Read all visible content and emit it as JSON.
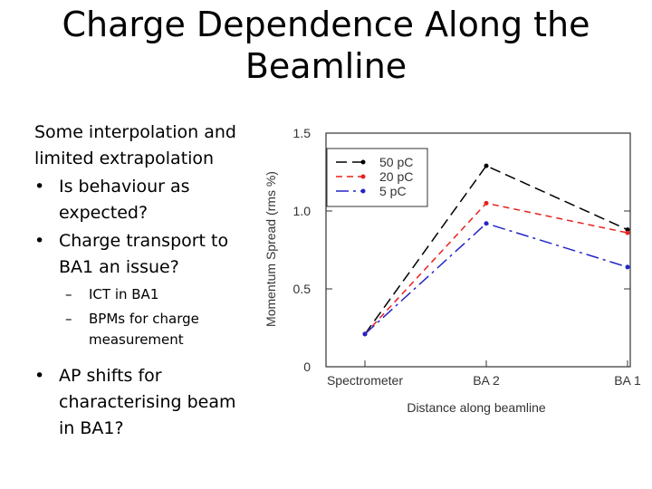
{
  "slide": {
    "title_line1": "Charge Dependence Along the",
    "title_line2": "Beamline",
    "intro_line1": "Some interpolation and",
    "intro_line2": "limited extrapolation",
    "bullets": [
      {
        "text_line1": "Is behaviour as",
        "text_line2": "expected?"
      },
      {
        "text_line1": "Charge transport to",
        "text_line2": "BA1 an issue?"
      },
      {
        "text_line1": "AP shifts for",
        "text_line2": "characterising beam",
        "text_line3": "in BA1?"
      }
    ],
    "subbullets": [
      {
        "text_line1": "ICT in BA1"
      },
      {
        "text_line1": "BPMs for charge",
        "text_line2": "measurement"
      }
    ],
    "bullet_char": "•",
    "sub_char": "–"
  },
  "chart_data": {
    "type": "line",
    "title": "",
    "xlabel": "Distance along beamline",
    "ylabel": "Momentum Spread (rms %)",
    "categories": [
      "Spectrometer",
      "BA 2",
      "BA 1"
    ],
    "ylim": [
      0,
      1.5
    ],
    "yticks": [
      0,
      0.5,
      1.0,
      1.5
    ],
    "ytick_labels": [
      "0",
      "0.5",
      "1.0",
      "1.5"
    ],
    "legend_position": "top-left",
    "series": [
      {
        "name": "50 pC",
        "values": [
          0.21,
          1.29,
          0.88
        ],
        "color": "#000000",
        "dash": "12 6"
      },
      {
        "name": "20 pC",
        "values": [
          0.21,
          1.05,
          0.86
        ],
        "color": "#e8211d",
        "dash": "7 5"
      },
      {
        "name": "5 pC",
        "values": [
          0.21,
          0.92,
          0.64
        ],
        "color": "#2426c8",
        "dash": "14 5 3 5"
      }
    ]
  }
}
